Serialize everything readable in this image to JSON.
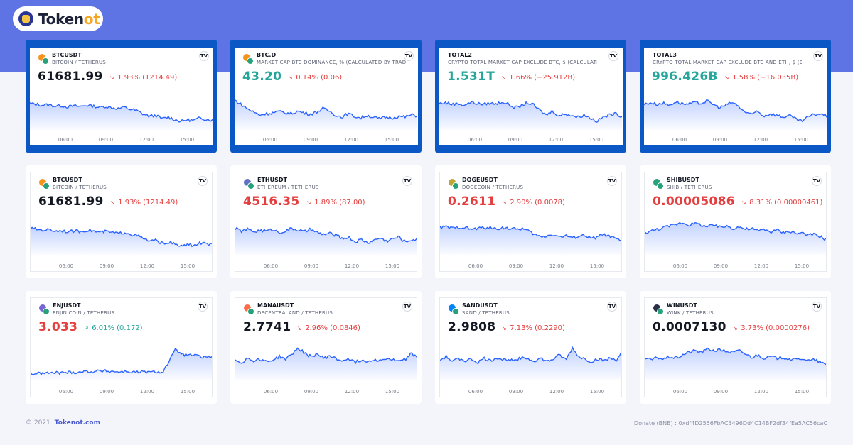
{
  "brand": {
    "name_main": "Token",
    "name_accent": "ot"
  },
  "axis_ticks": [
    "06:00",
    "09:00",
    "12:00",
    "15:00"
  ],
  "cards": [
    {
      "symbol": "BTCUSDT",
      "subtitle": "BITCOIN / TETHERUS",
      "price": "61681.99",
      "change": "1.93% (1214.49)",
      "direction": "down",
      "price_color": "dark",
      "highlighted": true,
      "icon": "bitcoin-tether-icon",
      "icon_color": "#f7931a",
      "series": [
        0.72,
        0.7,
        0.68,
        0.69,
        0.66,
        0.67,
        0.64,
        0.66,
        0.65,
        0.68,
        0.66,
        0.63,
        0.65,
        0.62,
        0.6,
        0.63,
        0.58,
        0.55,
        0.47,
        0.42,
        0.44,
        0.36,
        0.4,
        0.34,
        0.3,
        0.34,
        0.32,
        0.38,
        0.35,
        0.33
      ]
    },
    {
      "symbol": "BTC.D",
      "subtitle": "MARKET CAP BTC DOMINANCE, % (CALCULATED BY TRADINGVIEW)",
      "price": "43.20",
      "change": "0.14% (0.06)",
      "direction": "down",
      "price_color": "green",
      "highlighted": true,
      "icon": "bitcoin-icon",
      "icon_color": "#f7931a",
      "series": [
        0.8,
        0.7,
        0.6,
        0.52,
        0.45,
        0.48,
        0.5,
        0.53,
        0.5,
        0.48,
        0.54,
        0.5,
        0.47,
        0.52,
        0.6,
        0.55,
        0.45,
        0.4,
        0.48,
        0.42,
        0.38,
        0.44,
        0.4,
        0.36,
        0.4,
        0.38,
        0.42,
        0.4,
        0.45,
        0.43
      ]
    },
    {
      "symbol": "TOTAL2",
      "subtitle": "CRYPTO TOTAL MARKET CAP EXCLUDE BTC, $ (CALCULATED BY TRADINGVIEW)",
      "price": "1.531T",
      "change": "1.66% (−25.912B)",
      "direction": "down",
      "price_color": "green",
      "highlighted": true,
      "icon": "",
      "icon_color": "",
      "series": [
        0.72,
        0.74,
        0.7,
        0.72,
        0.68,
        0.75,
        0.72,
        0.7,
        0.73,
        0.71,
        0.76,
        0.7,
        0.62,
        0.66,
        0.74,
        0.68,
        0.55,
        0.45,
        0.55,
        0.42,
        0.48,
        0.44,
        0.4,
        0.45,
        0.38,
        0.3,
        0.4,
        0.45,
        0.48,
        0.42
      ]
    },
    {
      "symbol": "TOTAL3",
      "subtitle": "CRYPTO TOTAL MARKET CAP EXCLUDE BTC AND ETH, $ (CALCULATED BY TRADINGVIEW)",
      "price": "996.426B",
      "change": "1.58% (−16.035B)",
      "direction": "down",
      "price_color": "green",
      "highlighted": true,
      "icon": "",
      "icon_color": "",
      "series": [
        0.7,
        0.74,
        0.7,
        0.73,
        0.68,
        0.76,
        0.72,
        0.7,
        0.74,
        0.72,
        0.78,
        0.7,
        0.62,
        0.68,
        0.75,
        0.65,
        0.52,
        0.45,
        0.55,
        0.42,
        0.48,
        0.45,
        0.4,
        0.44,
        0.36,
        0.3,
        0.4,
        0.46,
        0.48,
        0.42
      ]
    },
    {
      "symbol": "BTCUSDT",
      "subtitle": "BITCOIN / TETHERUS",
      "price": "61681.99",
      "change": "1.93% (1214.49)",
      "direction": "down",
      "price_color": "dark",
      "highlighted": false,
      "icon": "bitcoin-tether-icon",
      "icon_color": "#f7931a",
      "series": [
        0.72,
        0.7,
        0.68,
        0.69,
        0.66,
        0.67,
        0.64,
        0.66,
        0.65,
        0.68,
        0.66,
        0.63,
        0.65,
        0.62,
        0.6,
        0.63,
        0.58,
        0.55,
        0.47,
        0.42,
        0.44,
        0.36,
        0.4,
        0.34,
        0.3,
        0.34,
        0.32,
        0.38,
        0.35,
        0.33
      ]
    },
    {
      "symbol": "ETHUSDT",
      "subtitle": "ETHEREUM / TETHERUS",
      "price": "4516.35",
      "change": "1.89% (87.00)",
      "direction": "down",
      "price_color": "red",
      "highlighted": false,
      "icon": "ethereum-tether-icon",
      "icon_color": "#6270c4",
      "series": [
        0.72,
        0.66,
        0.7,
        0.64,
        0.68,
        0.66,
        0.7,
        0.62,
        0.66,
        0.72,
        0.68,
        0.64,
        0.7,
        0.62,
        0.58,
        0.6,
        0.56,
        0.48,
        0.52,
        0.4,
        0.46,
        0.38,
        0.44,
        0.5,
        0.42,
        0.48,
        0.52,
        0.4,
        0.46,
        0.44
      ]
    },
    {
      "symbol": "DOGEUSDT",
      "subtitle": "DOGECOIN / TETHERUS",
      "price": "0.2611",
      "change": "2.90% (0.0078)",
      "direction": "down",
      "price_color": "red",
      "highlighted": false,
      "icon": "dogecoin-tether-icon",
      "icon_color": "#c2a633",
      "series": [
        0.74,
        0.76,
        0.72,
        0.75,
        0.74,
        0.7,
        0.72,
        0.74,
        0.73,
        0.71,
        0.74,
        0.72,
        0.7,
        0.72,
        0.66,
        0.58,
        0.52,
        0.55,
        0.58,
        0.52,
        0.55,
        0.5,
        0.54,
        0.56,
        0.48,
        0.52,
        0.58,
        0.52,
        0.48,
        0.38
      ]
    },
    {
      "symbol": "SHIBUSDT",
      "subtitle": "SHIB / TETHERUS",
      "price": "0.00005086",
      "change": "8.31% (0.00000461)",
      "direction": "down",
      "price_color": "red",
      "highlighted": false,
      "icon": "shib-tether-icon",
      "icon_color": "#26a17b",
      "series": [
        0.62,
        0.66,
        0.7,
        0.74,
        0.78,
        0.82,
        0.86,
        0.8,
        0.84,
        0.8,
        0.76,
        0.8,
        0.74,
        0.78,
        0.72,
        0.76,
        0.7,
        0.72,
        0.66,
        0.7,
        0.64,
        0.68,
        0.62,
        0.66,
        0.6,
        0.62,
        0.56,
        0.58,
        0.52,
        0.44
      ]
    },
    {
      "symbol": "ENJUSDT",
      "subtitle": "ENJIN COIN / TETHERUS",
      "price": "3.033",
      "change": "6.01% (0.172)",
      "direction": "up",
      "price_color": "red",
      "highlighted": false,
      "icon": "enjin-tether-icon",
      "icon_color": "#7866d5",
      "series": [
        0.26,
        0.26,
        0.27,
        0.27,
        0.28,
        0.28,
        0.29,
        0.29,
        0.3,
        0.31,
        0.31,
        0.32,
        0.32,
        0.31,
        0.3,
        0.31,
        0.3,
        0.29,
        0.3,
        0.29,
        0.3,
        0.3,
        0.55,
        0.82,
        0.72,
        0.68,
        0.7,
        0.64,
        0.66,
        0.62
      ]
    },
    {
      "symbol": "MANAUSDT",
      "subtitle": "DECENTRALAND / TETHERUS",
      "price": "2.7741",
      "change": "2.96% (0.0846)",
      "direction": "down",
      "price_color": "dark",
      "highlighted": false,
      "icon": "decentraland-tether-icon",
      "icon_color": "#ff6c4a",
      "series": [
        0.58,
        0.52,
        0.62,
        0.56,
        0.6,
        0.54,
        0.58,
        0.66,
        0.6,
        0.72,
        0.86,
        0.74,
        0.66,
        0.72,
        0.62,
        0.68,
        0.6,
        0.56,
        0.62,
        0.52,
        0.58,
        0.54,
        0.6,
        0.56,
        0.62,
        0.58,
        0.54,
        0.6,
        0.74,
        0.6
      ]
    },
    {
      "symbol": "SANDUSDT",
      "subtitle": "SAND / TETHERUS",
      "price": "2.9808",
      "change": "7.13% (0.2290)",
      "direction": "down",
      "price_color": "dark",
      "highlighted": false,
      "icon": "sand-tether-icon",
      "icon_color": "#0084ff",
      "series": [
        0.58,
        0.66,
        0.54,
        0.62,
        0.56,
        0.6,
        0.52,
        0.62,
        0.56,
        0.64,
        0.58,
        0.6,
        0.54,
        0.66,
        0.6,
        0.56,
        0.62,
        0.54,
        0.6,
        0.7,
        0.58,
        0.86,
        0.66,
        0.6,
        0.54,
        0.6,
        0.56,
        0.62,
        0.58,
        0.8
      ]
    },
    {
      "symbol": "WINUSDT",
      "subtitle": "WINK / TETHERUS",
      "price": "0.0007130",
      "change": "3.73% (0.0000276)",
      "direction": "down",
      "price_color": "dark",
      "highlighted": false,
      "icon": "wink-tether-icon",
      "icon_color": "#2b2f47",
      "series": [
        0.62,
        0.58,
        0.64,
        0.6,
        0.66,
        0.62,
        0.7,
        0.76,
        0.8,
        0.76,
        0.84,
        0.8,
        0.82,
        0.78,
        0.76,
        0.8,
        0.72,
        0.64,
        0.7,
        0.62,
        0.66,
        0.62,
        0.64,
        0.6,
        0.58,
        0.62,
        0.56,
        0.58,
        0.52,
        0.44
      ]
    }
  ],
  "footer": {
    "copyright": "© 2021",
    "brand_link": "Tokenot.com",
    "donate": "Donate (BNB) : 0xdf4D2556FbAC3496Dd4C14BF2df34fEa5AC56caC"
  },
  "colors": {
    "banner": "#5e73e4",
    "highlight_border": "#0b57c5",
    "line": "#2962ff",
    "down": "#e53e3e",
    "up": "#26a69a"
  }
}
